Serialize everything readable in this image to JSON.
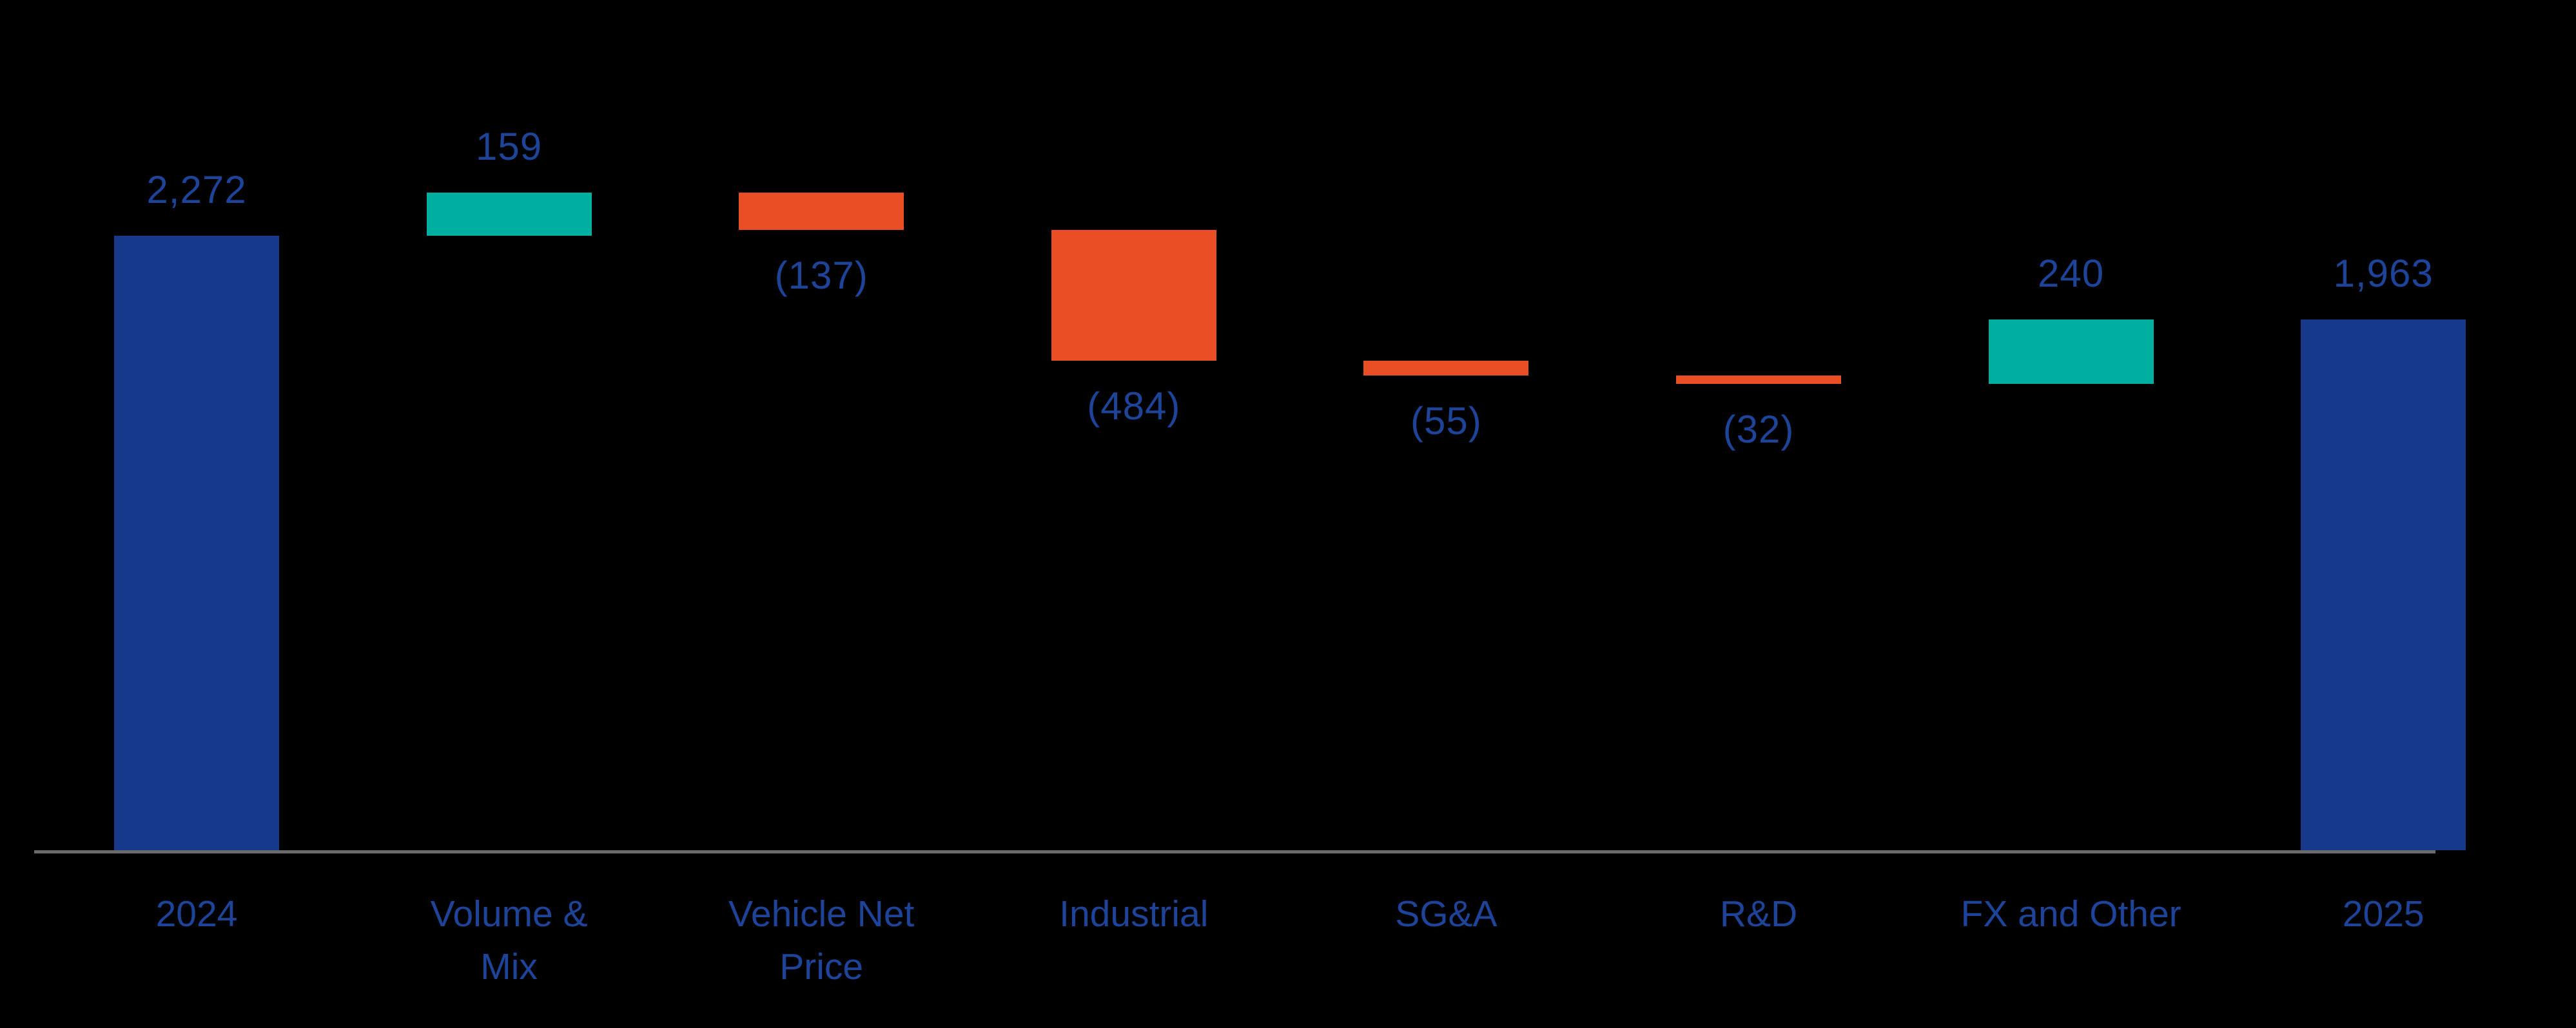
{
  "chart_data": {
    "type": "bar",
    "subtype": "waterfall",
    "title": "",
    "xlabel": "",
    "ylabel": "",
    "grid": false,
    "legend": false,
    "ylim": [
      0,
      2500
    ],
    "categories": [
      "2024",
      "Volume & Mix",
      "Vehicle Net Price",
      "Industrial",
      "SG&A",
      "R&D",
      "FX and Other",
      "2025"
    ],
    "steps": [
      {
        "label": "2024",
        "label_lines": [
          "2024"
        ],
        "kind": "total",
        "value": 2272,
        "display": "2,272"
      },
      {
        "label": "Volume & Mix",
        "label_lines": [
          "Volume &",
          "Mix"
        ],
        "kind": "increase",
        "value": 159,
        "display": "159"
      },
      {
        "label": "Vehicle Net Price",
        "label_lines": [
          "Vehicle Net",
          "Price"
        ],
        "kind": "decrease",
        "value": -137,
        "display": "(137)"
      },
      {
        "label": "Industrial",
        "label_lines": [
          "Industrial"
        ],
        "kind": "decrease",
        "value": -484,
        "display": "(484)"
      },
      {
        "label": "SG&A",
        "label_lines": [
          "SG&A"
        ],
        "kind": "decrease",
        "value": -55,
        "display": "(55)"
      },
      {
        "label": "R&D",
        "label_lines": [
          "R&D"
        ],
        "kind": "decrease",
        "value": -32,
        "display": "(32)"
      },
      {
        "label": "FX and Other",
        "label_lines": [
          "FX and Other"
        ],
        "kind": "increase",
        "value": 240,
        "display": "240"
      },
      {
        "label": "2025",
        "label_lines": [
          "2025"
        ],
        "kind": "total",
        "value": 1963,
        "display": "1,963"
      }
    ],
    "colors": {
      "total_bar": "#17398C",
      "increase_bar": "#00AFA0",
      "decrease_bar": "#E94E24",
      "label_text": "#1D4499",
      "axis_line": "#6B6B6B",
      "background": "#000000"
    }
  }
}
